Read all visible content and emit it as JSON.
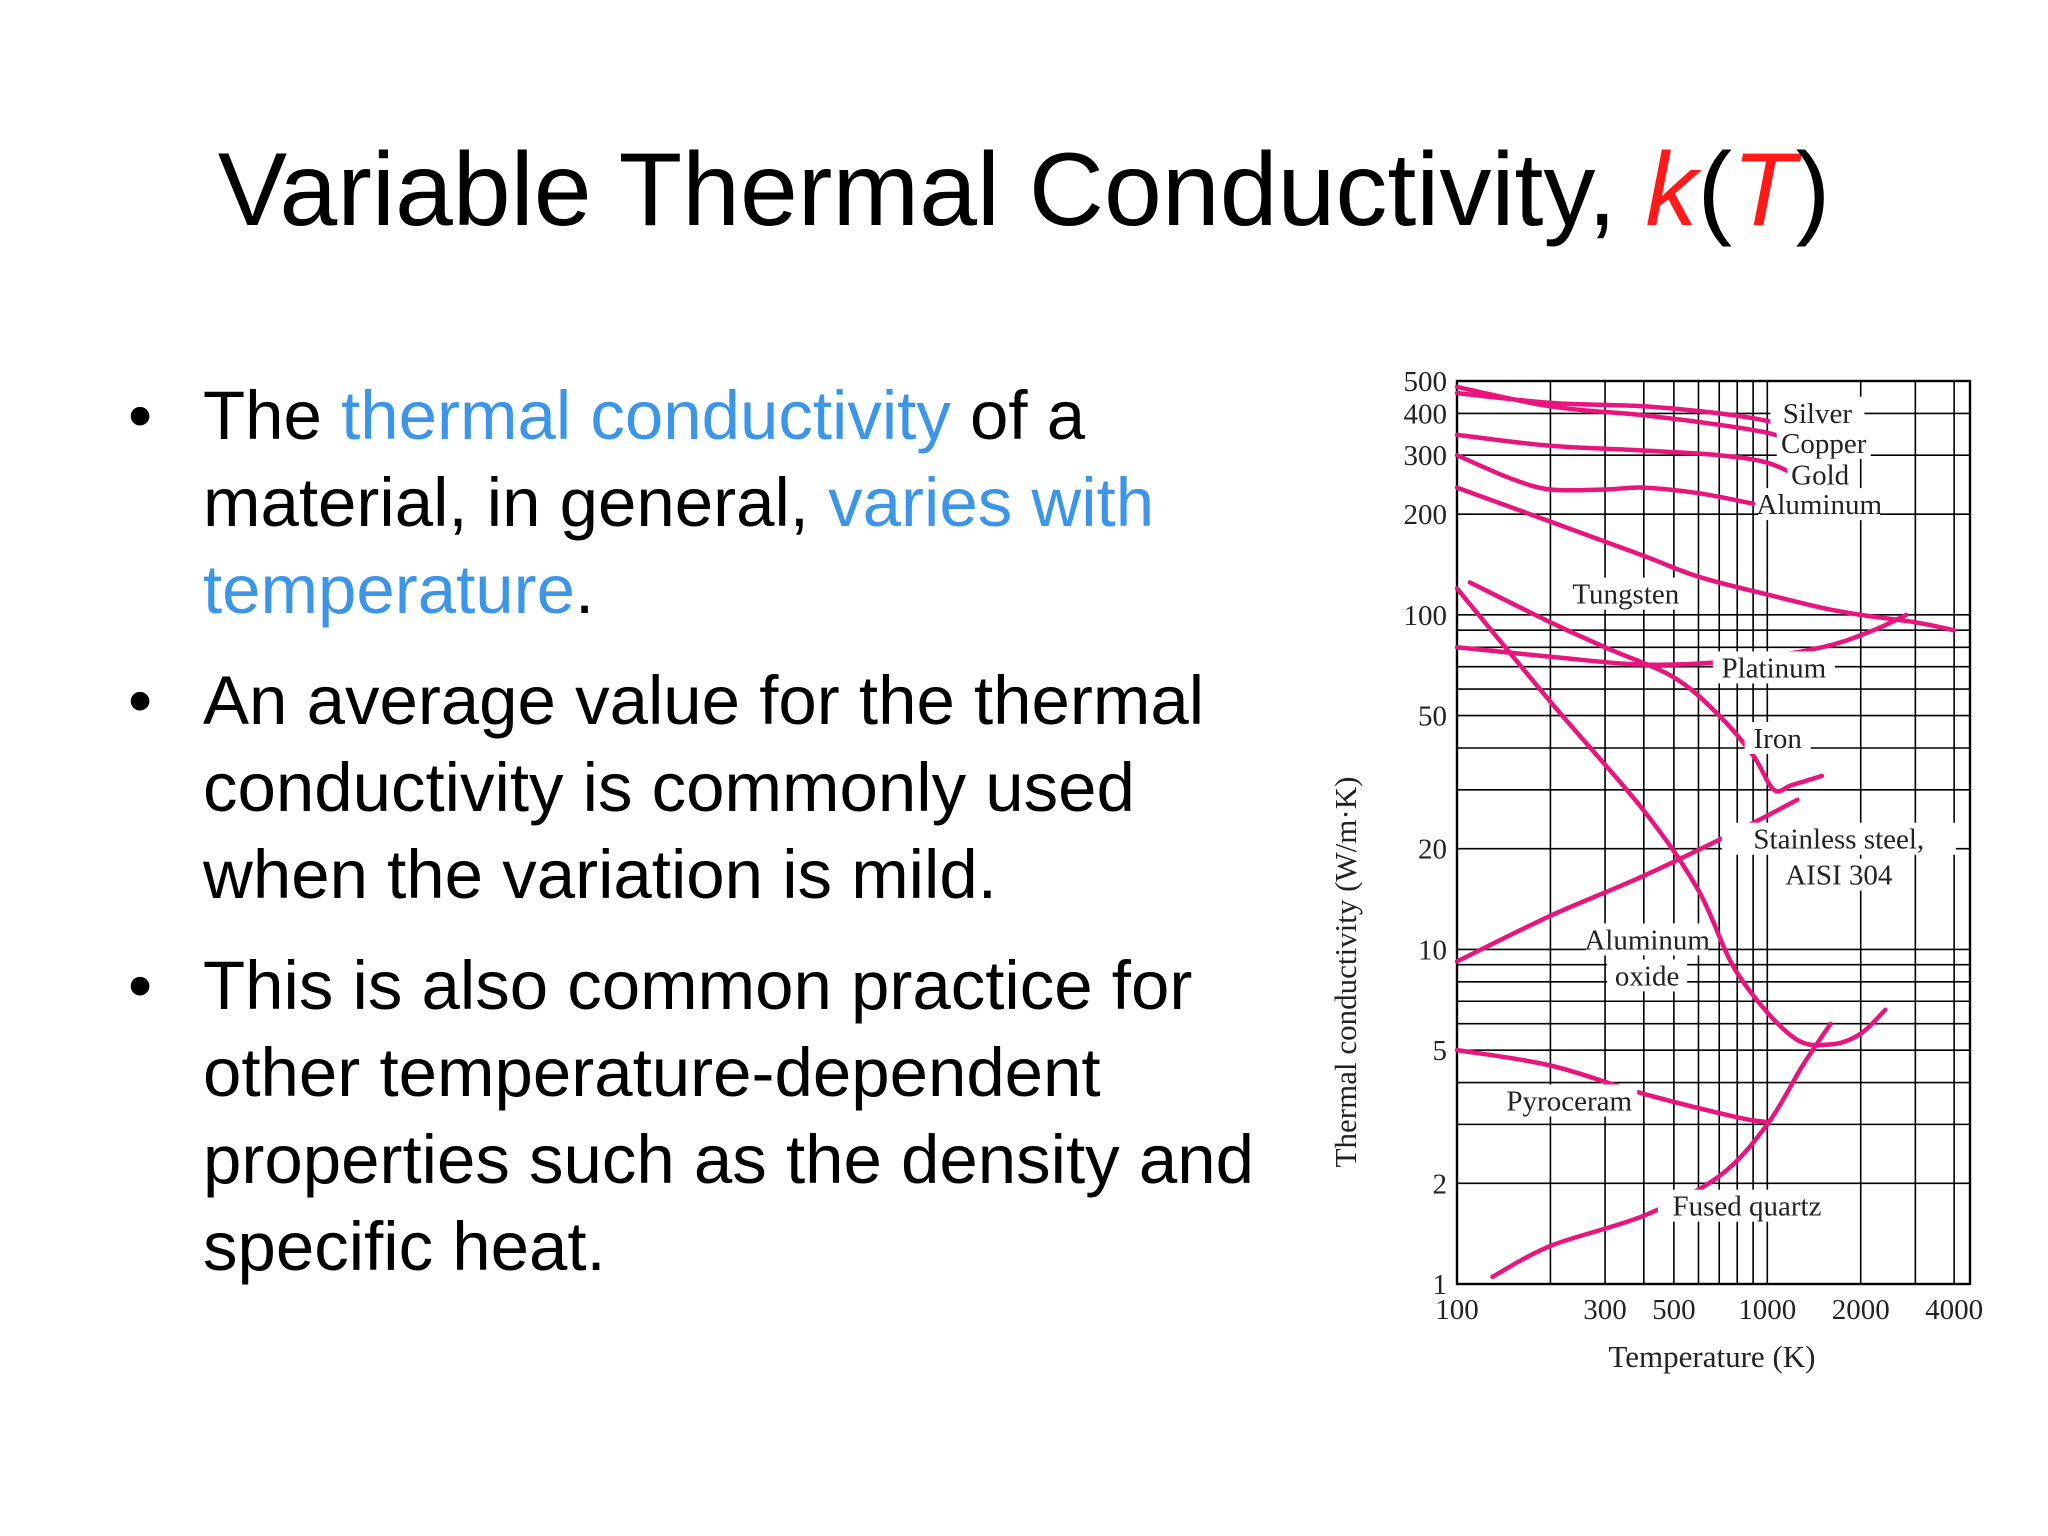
{
  "slide": {
    "title_main": "Variable Thermal Conductivity, ",
    "title_k": "k",
    "title_open": "(",
    "title_T": "T",
    "title_close": ")"
  },
  "bullets": [
    {
      "bullet_symbol": "•",
      "t1": "The ",
      "t2": "thermal conductivity",
      "t3": " of a material, in general, ",
      "t4": "varies with temperature",
      "t5": "."
    },
    {
      "bullet_symbol": "•",
      "text": "An average value for the thermal conductivity is commonly used when the variation is mild."
    },
    {
      "bullet_symbol": "•",
      "text": "This is also common practice for other temperature-dependent properties such as the density and specific heat."
    }
  ],
  "colors": {
    "accent_red": "#ff1a1a",
    "highlight_blue": "#3d95e8",
    "curve": "#e8157f",
    "grid": "#000000"
  },
  "chart_data": {
    "type": "line",
    "xscale": "log",
    "yscale": "log",
    "xlabel": "Temperature (K)",
    "ylabel": "Thermal conductivity (W/m·K)",
    "xlim": [
      100,
      4500
    ],
    "ylim": [
      1,
      500
    ],
    "x_ticks": [
      {
        "v": 100,
        "label": "100"
      },
      {
        "v": 300,
        "label": "300"
      },
      {
        "v": 500,
        "label": "500"
      },
      {
        "v": 1000,
        "label": "1000"
      },
      {
        "v": 2000,
        "label": "2000"
      },
      {
        "v": 4000,
        "label": "4000"
      }
    ],
    "y_ticks": [
      {
        "v": 1,
        "label": "1"
      },
      {
        "v": 2,
        "label": "2"
      },
      {
        "v": 5,
        "label": "5"
      },
      {
        "v": 10,
        "label": "10"
      },
      {
        "v": 20,
        "label": "20"
      },
      {
        "v": 50,
        "label": "50"
      },
      {
        "v": 100,
        "label": "100"
      },
      {
        "v": 200,
        "label": "200"
      },
      {
        "v": 300,
        "label": "300"
      },
      {
        "v": 400,
        "label": "400"
      },
      {
        "v": 500,
        "label": "500"
      }
    ],
    "grid": true,
    "series": [
      {
        "name": "Silver",
        "label_lines": [
          "Silver"
        ],
        "label_at": [
          1450,
          375
        ],
        "x": [
          100,
          200,
          400,
          700,
          1000,
          1230
        ],
        "y": [
          460,
          430,
          420,
          400,
          380,
          360
        ]
      },
      {
        "name": "Copper",
        "label_lines": [
          "Copper"
        ],
        "label_at": [
          1520,
          305
        ],
        "x": [
          100,
          200,
          400,
          700,
          1000,
          1300
        ],
        "y": [
          480,
          420,
          395,
          370,
          350,
          325
        ]
      },
      {
        "name": "Gold",
        "label_lines": [
          "Gold"
        ],
        "label_at": [
          1480,
          245
        ],
        "x": [
          100,
          200,
          400,
          700,
          1000,
          1300
        ],
        "y": [
          345,
          320,
          310,
          300,
          285,
          255
        ]
      },
      {
        "name": "Aluminum",
        "label_lines": [
          "Aluminum"
        ],
        "label_at": [
          1470,
          200
        ],
        "x": [
          100,
          150,
          200,
          300,
          400,
          600,
          900
        ],
        "y": [
          300,
          255,
          237,
          237,
          240,
          231,
          215
        ]
      },
      {
        "name": "Tungsten",
        "label_lines": [
          "Tungsten"
        ],
        "label_at": [
          350,
          108
        ],
        "x": [
          100,
          200,
          400,
          600,
          1000,
          1500,
          2000,
          3000,
          4000
        ],
        "y": [
          240,
          190,
          150,
          130,
          115,
          105,
          100,
          95,
          90
        ]
      },
      {
        "name": "Platinum",
        "label_lines": [
          "Platinum"
        ],
        "label_at": [
          1050,
          65
        ],
        "x": [
          100,
          200,
          400,
          800,
          1500,
          2200,
          2800
        ],
        "y": [
          80,
          75,
          71,
          73,
          80,
          90,
          100
        ]
      },
      {
        "name": "Iron",
        "label_lines": [
          "Iron"
        ],
        "label_at": [
          1080,
          40
        ],
        "x": [
          110,
          200,
          300,
          500,
          700,
          900,
          1050,
          1200,
          1500
        ],
        "y": [
          125,
          95,
          80,
          65,
          50,
          38,
          30,
          31,
          33
        ]
      },
      {
        "name": "Stainless steel, AISI 304",
        "label_lines": [
          "Stainless steel,",
          "AISI 304"
        ],
        "label_at": [
          1700,
          20
        ],
        "x": [
          100,
          200,
          400,
          800,
          1250
        ],
        "y": [
          9.2,
          12.6,
          16.6,
          22.6,
          28
        ]
      },
      {
        "name": "Aluminum oxide",
        "label_lines": [
          "Aluminum",
          "oxide"
        ],
        "label_at": [
          410,
          10
        ],
        "x": [
          100,
          200,
          400,
          600,
          800,
          1200,
          1600,
          2000,
          2400
        ],
        "y": [
          120,
          55,
          26,
          15,
          8.5,
          5.5,
          5.2,
          5.6,
          6.6
        ]
      },
      {
        "name": "Pyroceram",
        "label_lines": [
          "Pyroceram"
        ],
        "label_at": [
          230,
          3.3
        ],
        "x": [
          100,
          200,
          400,
          800,
          1000
        ],
        "y": [
          5,
          4.5,
          3.7,
          3.15,
          3.05
        ]
      },
      {
        "name": "Fused quartz",
        "label_lines": [
          "Fused quartz"
        ],
        "label_at": [
          860,
          1.6
        ],
        "x": [
          130,
          200,
          400,
          700,
          1000,
          1300,
          1600
        ],
        "y": [
          1.05,
          1.3,
          1.6,
          2.1,
          3.0,
          4.5,
          6.0
        ]
      }
    ]
  }
}
